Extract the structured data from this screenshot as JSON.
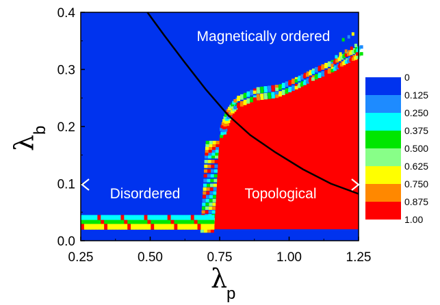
{
  "chart_data": {
    "type": "heatmap",
    "xlabel": "λ",
    "xlabel_sub": "p",
    "ylabel": "λ",
    "ylabel_sub": "b",
    "xlim": [
      0.25,
      1.25
    ],
    "ylim": [
      0.0,
      0.4
    ],
    "x_ticks": [
      "0.25",
      "0.50",
      "0.75",
      "1.00",
      "1.25"
    ],
    "y_ticks": [
      "0.0",
      "0.1",
      "0.2",
      "0.3",
      "0.4"
    ],
    "colorscale": [
      {
        "label": "0",
        "color": "#0033ee"
      },
      {
        "label": "0.125",
        "color": "#1e8bff"
      },
      {
        "label": "0.250",
        "color": "#00ffff"
      },
      {
        "label": "0.375",
        "color": "#00e600"
      },
      {
        "label": "0.500",
        "color": "#88ff88"
      },
      {
        "label": "0.625",
        "color": "#ffff00"
      },
      {
        "label": "0.750",
        "color": "#ff8800"
      },
      {
        "label": "0.875",
        "color": "#ff0000"
      },
      {
        "label": "1.00",
        "color": "#ff0000"
      }
    ],
    "region_labels": [
      {
        "text": "Magnetically ordered",
        "x": 0.86,
        "y": 0.36
      },
      {
        "text": "Disordered",
        "x": 0.41,
        "y": 0.085
      },
      {
        "text": "Topological",
        "x": 0.96,
        "y": 0.085
      }
    ],
    "boundary_curve": {
      "description_points": [
        [
          0.49,
          0.4
        ],
        [
          0.55,
          0.36
        ],
        [
          0.62,
          0.315
        ],
        [
          0.7,
          0.265
        ],
        [
          0.78,
          0.22
        ],
        [
          0.86,
          0.185
        ],
        [
          0.95,
          0.155
        ],
        [
          1.05,
          0.125
        ],
        [
          1.15,
          0.1
        ],
        [
          1.25,
          0.082
        ]
      ]
    },
    "phase_boundary_topological": [
      [
        0.73,
        0.02
      ],
      [
        0.735,
        0.06
      ],
      [
        0.74,
        0.1
      ],
      [
        0.745,
        0.15
      ],
      [
        0.75,
        0.18
      ],
      [
        0.77,
        0.21
      ],
      [
        0.8,
        0.23
      ],
      [
        0.87,
        0.245
      ],
      [
        0.95,
        0.25
      ],
      [
        1.02,
        0.265
      ],
      [
        1.08,
        0.28
      ],
      [
        1.15,
        0.295
      ],
      [
        1.2,
        0.31
      ],
      [
        1.25,
        0.32
      ]
    ],
    "low_band": {
      "y_top": 0.045,
      "x_end": 0.73
    }
  }
}
